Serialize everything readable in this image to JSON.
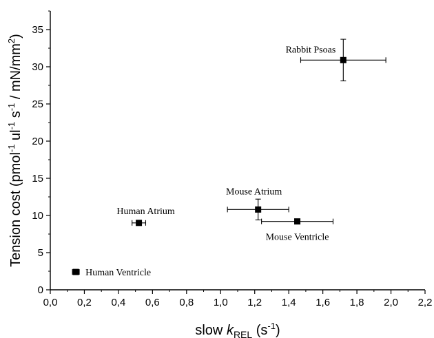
{
  "chart_data": {
    "type": "scatter",
    "xlabel": "slow kREL (s-1)",
    "ylabel": "Tension cost (pmol-1 ul-1 s-1 / mN/mm2)",
    "xlim": [
      0,
      2.2
    ],
    "ylim": [
      0,
      37.5
    ],
    "x_ticks": [
      "0,0",
      "0,2",
      "0,4",
      "0,6",
      "0,8",
      "1,0",
      "1,2",
      "1,4",
      "1,6",
      "1,8",
      "2,0",
      "2,2"
    ],
    "y_ticks": [
      "0",
      "5",
      "10",
      "15",
      "20",
      "25",
      "30",
      "35"
    ],
    "grid": false,
    "points": [
      {
        "label": "Human Ventricle",
        "x": 0.15,
        "y": 2.4,
        "xerr": 0.02,
        "yerr": 0.2
      },
      {
        "label": "Human Atrium",
        "x": 0.52,
        "y": 9.0,
        "xerr": 0.04,
        "yerr": 0.3
      },
      {
        "label": "Mouse Atrium",
        "x": 1.22,
        "y": 10.8,
        "xerr": 0.18,
        "yerr": 1.4
      },
      {
        "label": "Mouse Ventricle",
        "x": 1.45,
        "y": 9.2,
        "xerr": 0.21,
        "yerr": 0.2
      },
      {
        "label": "Rabbit Psoas",
        "x": 1.72,
        "y": 30.9,
        "xerr": 0.25,
        "yerr": 2.8
      }
    ]
  }
}
